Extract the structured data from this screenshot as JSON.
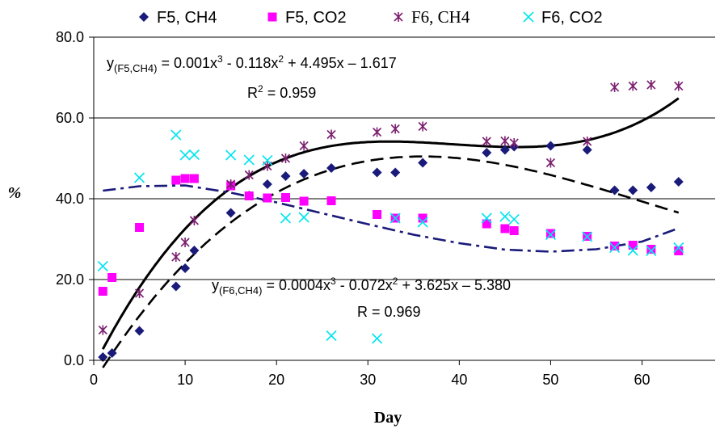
{
  "chart_data": {
    "type": "scatter",
    "xlabel": "Day",
    "ylabel": "%",
    "xlim": [
      0,
      68
    ],
    "ylim": [
      0,
      80
    ],
    "x_ticks": [
      "0",
      "10",
      "20",
      "30",
      "40",
      "50",
      "60"
    ],
    "y_ticks": [
      "0.0",
      "20.0",
      "40.0",
      "60.0",
      "80.0"
    ],
    "grid": "horizontal",
    "legend_position": "top",
    "series": [
      {
        "name": "F5, CH4",
        "marker": "diamond",
        "color": "#1a1a7a",
        "points": [
          [
            1,
            0.8
          ],
          [
            2,
            1.8
          ],
          [
            5,
            7.3
          ],
          [
            9,
            18.3
          ],
          [
            10,
            22.8
          ],
          [
            11,
            27.2
          ],
          [
            15,
            36.5
          ],
          [
            17,
            40.8
          ],
          [
            19,
            43.6
          ],
          [
            21,
            45.6
          ],
          [
            23,
            46.2
          ],
          [
            26,
            47.6
          ],
          [
            31,
            46.5
          ],
          [
            33,
            46.5
          ],
          [
            36,
            48.9
          ],
          [
            43,
            51.4
          ],
          [
            45,
            52.1
          ],
          [
            46,
            52.9
          ],
          [
            50,
            53.1
          ],
          [
            54,
            52.1
          ],
          [
            57,
            42.1
          ],
          [
            59,
            42.1
          ],
          [
            61,
            42.8
          ],
          [
            64,
            44.2
          ]
        ]
      },
      {
        "name": "F5, CO2",
        "marker": "square",
        "color": "#ff00ff",
        "points": [
          [
            1,
            17.1
          ],
          [
            2,
            20.5
          ],
          [
            5,
            32.9
          ],
          [
            9,
            44.6
          ],
          [
            10,
            45
          ],
          [
            11,
            45
          ],
          [
            15,
            43.2
          ],
          [
            17,
            40.7
          ],
          [
            19,
            40.2
          ],
          [
            21,
            40.3
          ],
          [
            23,
            39.4
          ],
          [
            26,
            39.5
          ],
          [
            31,
            36.1
          ],
          [
            33,
            35.2
          ],
          [
            36,
            35.2
          ],
          [
            43,
            33.8
          ],
          [
            45,
            32.6
          ],
          [
            46,
            32.1
          ],
          [
            50,
            31.4
          ],
          [
            54,
            30.7
          ],
          [
            57,
            28.3
          ],
          [
            59,
            28.5
          ],
          [
            61,
            27.5
          ],
          [
            64,
            27.1
          ]
        ]
      },
      {
        "name": "F6, CH4",
        "marker": "asterisk",
        "color": "#7b1f6f",
        "points": [
          [
            1,
            7.5
          ],
          [
            5,
            16.6
          ],
          [
            9,
            25.6
          ],
          [
            10,
            29.2
          ],
          [
            11,
            34.6
          ],
          [
            15,
            43.6
          ],
          [
            17,
            45.9
          ],
          [
            19,
            48.1
          ],
          [
            21,
            50
          ],
          [
            23,
            53.1
          ],
          [
            26,
            55.9
          ],
          [
            31,
            56.5
          ],
          [
            33,
            57.3
          ],
          [
            36,
            57.9
          ],
          [
            43,
            54.2
          ],
          [
            45,
            54.3
          ],
          [
            46,
            53.8
          ],
          [
            50,
            48.9
          ],
          [
            54,
            54.2
          ],
          [
            57,
            67.6
          ],
          [
            59,
            67.9
          ],
          [
            61,
            68.2
          ],
          [
            64,
            67.9
          ]
        ]
      },
      {
        "name": "F6, CO2",
        "marker": "x",
        "color": "#00e5ee",
        "points": [
          [
            1,
            23.3
          ],
          [
            5,
            45.2
          ],
          [
            9,
            55.8
          ],
          [
            10,
            50.8
          ],
          [
            11,
            50.9
          ],
          [
            15,
            50.8
          ],
          [
            17,
            49.6
          ],
          [
            19,
            49.5
          ],
          [
            21,
            35.2
          ],
          [
            23,
            35.4
          ],
          [
            26,
            6.1
          ],
          [
            31,
            5.4
          ],
          [
            33,
            35.2
          ],
          [
            36,
            34.2
          ],
          [
            43,
            35.2
          ],
          [
            45,
            35.6
          ],
          [
            46,
            34.9
          ],
          [
            50,
            31.1
          ],
          [
            54,
            30.6
          ],
          [
            57,
            27.9
          ],
          [
            59,
            27.2
          ],
          [
            61,
            27.1
          ],
          [
            64,
            27.9
          ]
        ]
      }
    ],
    "trendlines": [
      {
        "of": "F5, CH4",
        "style": "solid",
        "color": "#000000",
        "coefficients": [
          0.001,
          -0.118,
          4.495,
          -1.617
        ],
        "x_range": [
          1,
          64
        ]
      },
      {
        "of": "F6, CH4",
        "style": "dashed",
        "color": "#000000",
        "coefficients": [
          0.0004,
          -0.072,
          3.625,
          -5.38
        ],
        "x_range": [
          1,
          64
        ]
      },
      {
        "of": "CO2",
        "style": "dash-dot",
        "color": "#1a1a7a",
        "points": [
          [
            1,
            42
          ],
          [
            5,
            43.1
          ],
          [
            10,
            43.3
          ],
          [
            15,
            41.5
          ],
          [
            20,
            39.1
          ],
          [
            25,
            36.4
          ],
          [
            30,
            33.7
          ],
          [
            35,
            31.1
          ],
          [
            40,
            29
          ],
          [
            45,
            27.4
          ],
          [
            50,
            26.9
          ],
          [
            55,
            27.5
          ],
          [
            60,
            29.4
          ],
          [
            64,
            32.7
          ]
        ]
      }
    ],
    "annotations": {
      "eq1_prefix": "y",
      "eq1_sub": "(F5,CH4)",
      "eq1_part1": " = 0.001x",
      "eq1_sup1": "3",
      "eq1_part2": " - 0.118x",
      "eq1_sup2": "2",
      "eq1_part3": " + 4.495x – 1.617",
      "r2_1_prefix": "R",
      "r2_1_sup": "2",
      "r2_1_rest": " = 0.959",
      "eq2_prefix": "y",
      "eq2_sub": "(F6,CH4)",
      "eq2_part1": " = 0.0004x",
      "eq2_sup1": "3",
      "eq2_part2": " - 0.072x",
      "eq2_sup2": "2",
      "eq2_part3": " + 3.625x – 5.380",
      "r2_2": "R  = 0.969"
    }
  }
}
